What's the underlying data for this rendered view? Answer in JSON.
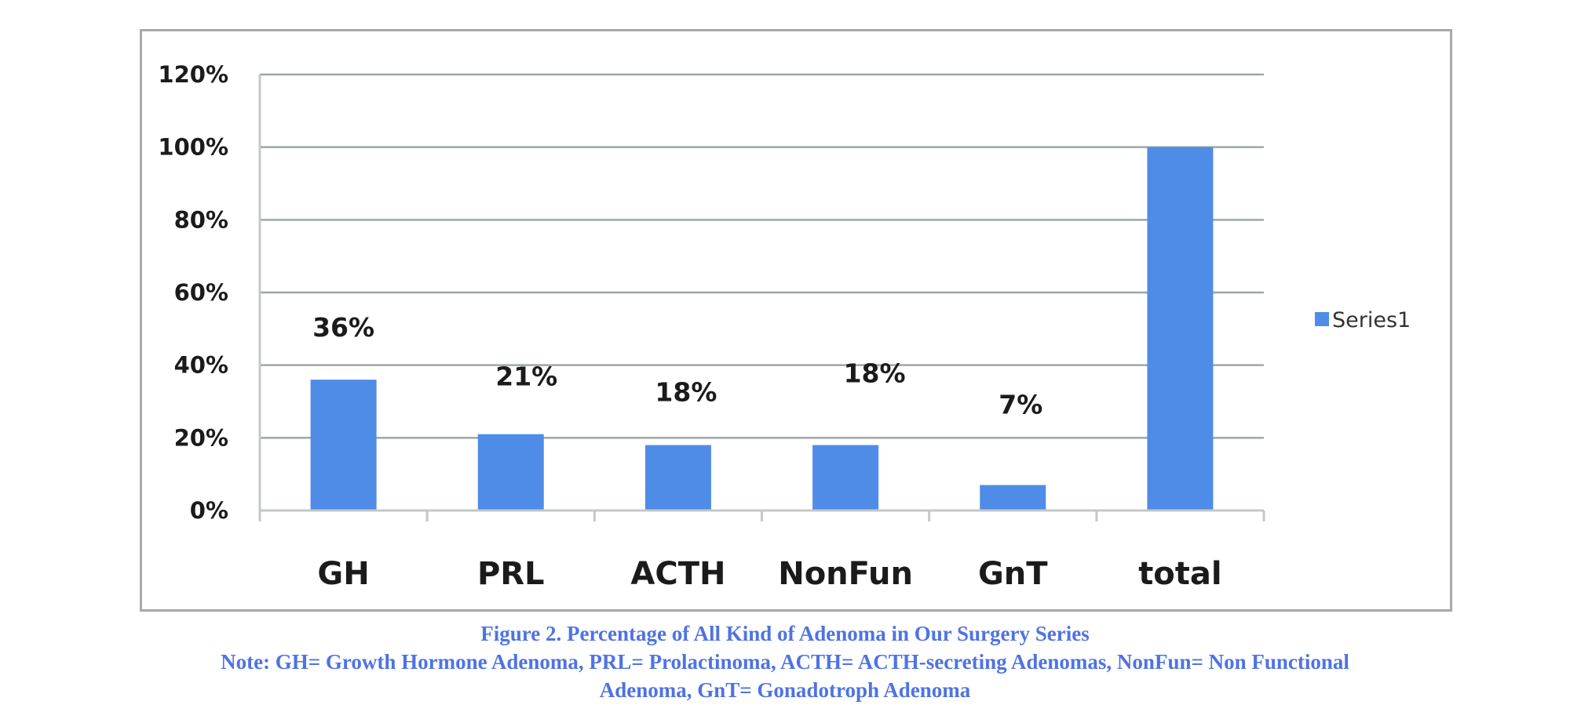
{
  "chart_data": {
    "type": "bar",
    "categories": [
      "GH",
      "PRL",
      "ACTH",
      "NonFun",
      "GnT",
      "total"
    ],
    "series": [
      {
        "name": "Series1",
        "values": [
          36,
          21,
          18,
          18,
          7,
          100
        ],
        "color": "#4f8ce8"
      }
    ],
    "data_labels": [
      "36%",
      "21%",
      "18%",
      "18%",
      "7%",
      null
    ],
    "y_ticks": [
      "0%",
      "20%",
      "40%",
      "60%",
      "80%",
      "100%",
      "120%"
    ],
    "ylim": [
      0,
      120
    ],
    "y_unit": "%",
    "grid": true,
    "legend_position": "right"
  },
  "caption": {
    "title": "Figure 2. Percentage of All Kind of Adenoma in Our Surgery Series",
    "note_line1": "Note: GH= Growth Hormone Adenoma, PRL= Prolactinoma, ACTH= ACTH-secreting Adenomas, NonFun= Non Functional",
    "note_line2": "Adenoma, GnT= Gonadotroph Adenoma"
  },
  "colors": {
    "bar": "#4f8ce8",
    "caption": "#4f73e3",
    "gridline": "#9fa6a5",
    "frame": "#a6aaa9"
  }
}
